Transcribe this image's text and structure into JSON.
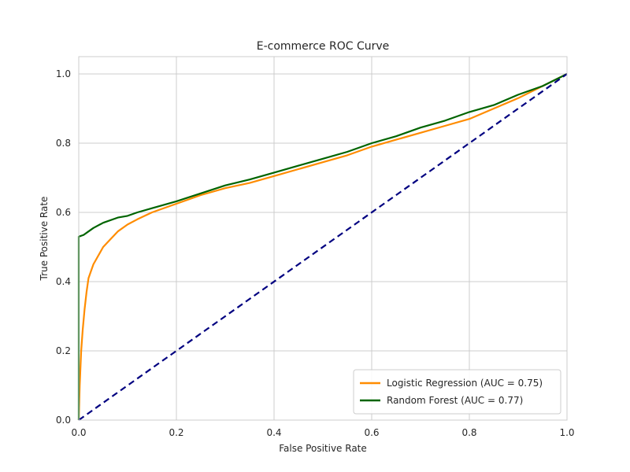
{
  "chart_data": {
    "type": "line",
    "title": "E-commerce ROC Curve",
    "xlabel": "False Positive Rate",
    "ylabel": "True Positive Rate",
    "xlim": [
      0.0,
      1.0
    ],
    "ylim": [
      0.0,
      1.05
    ],
    "xticks": [
      "0.0",
      "0.2",
      "0.4",
      "0.6",
      "0.8",
      "1.0"
    ],
    "yticks": [
      "0.0",
      "0.2",
      "0.4",
      "0.6",
      "0.8",
      "1.0"
    ],
    "grid": true,
    "legend_position": "lower-right",
    "series": [
      {
        "name": "Logistic Regression (AUC = 0.75)",
        "color": "#ff8c00",
        "style": "solid",
        "x": [
          0,
          0.002,
          0.005,
          0.008,
          0.012,
          0.016,
          0.02,
          0.025,
          0.03,
          0.04,
          0.05,
          0.06,
          0.08,
          0.1,
          0.12,
          0.15,
          0.2,
          0.25,
          0.3,
          0.35,
          0.4,
          0.45,
          0.5,
          0.55,
          0.6,
          0.65,
          0.7,
          0.75,
          0.8,
          0.85,
          0.9,
          0.95,
          1.0
        ],
        "y": [
          0,
          0.1,
          0.2,
          0.26,
          0.32,
          0.37,
          0.41,
          0.43,
          0.45,
          0.475,
          0.5,
          0.515,
          0.545,
          0.565,
          0.58,
          0.6,
          0.625,
          0.65,
          0.67,
          0.685,
          0.705,
          0.725,
          0.745,
          0.765,
          0.79,
          0.81,
          0.83,
          0.85,
          0.87,
          0.9,
          0.93,
          0.965,
          1.0
        ]
      },
      {
        "name": "Random Forest (AUC = 0.77)",
        "color": "#006400",
        "style": "solid",
        "x": [
          0,
          0.0,
          0.01,
          0.02,
          0.03,
          0.05,
          0.08,
          0.1,
          0.12,
          0.15,
          0.2,
          0.25,
          0.3,
          0.35,
          0.4,
          0.45,
          0.5,
          0.55,
          0.6,
          0.65,
          0.7,
          0.75,
          0.8,
          0.85,
          0.9,
          0.95,
          1.0
        ],
        "y": [
          0,
          0.53,
          0.535,
          0.545,
          0.555,
          0.57,
          0.585,
          0.59,
          0.6,
          0.612,
          0.632,
          0.655,
          0.678,
          0.695,
          0.715,
          0.735,
          0.755,
          0.775,
          0.8,
          0.82,
          0.845,
          0.865,
          0.89,
          0.91,
          0.94,
          0.965,
          1.0
        ]
      },
      {
        "name": "",
        "color": "#000080",
        "style": "dashed",
        "x": [
          0,
          1
        ],
        "y": [
          0,
          1
        ]
      }
    ]
  }
}
